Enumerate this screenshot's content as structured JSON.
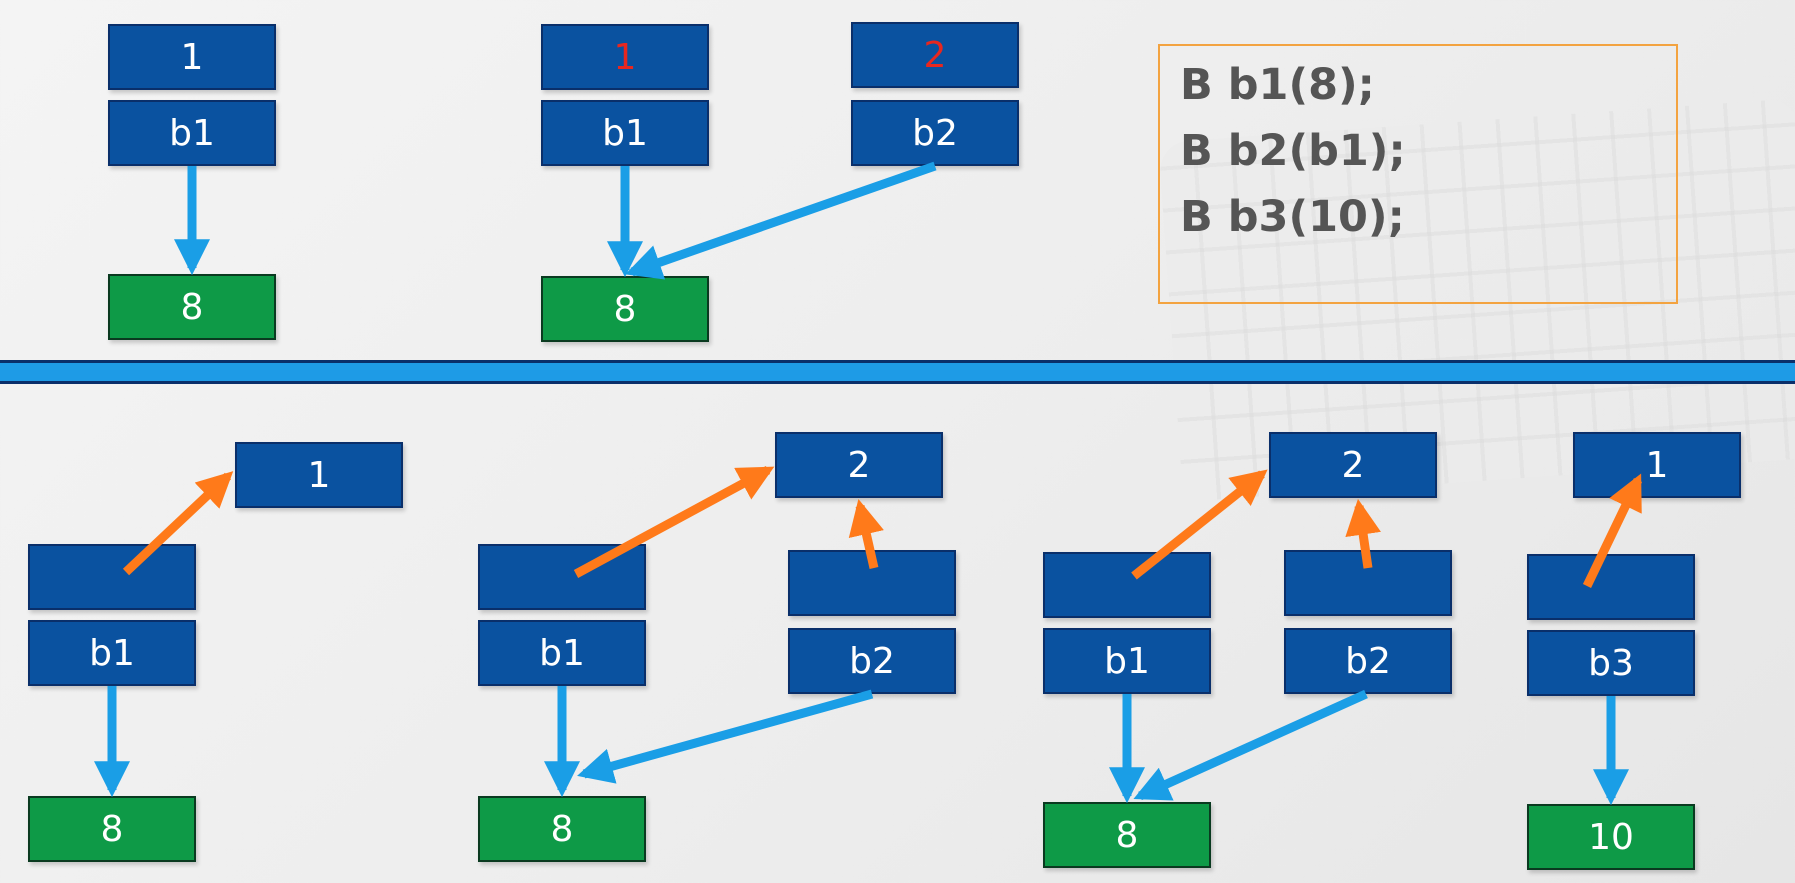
{
  "code": {
    "lines": [
      "B b1(8);",
      "B b2(b1);",
      "B b3(10);"
    ]
  },
  "top": {
    "d1": {
      "count": "1",
      "name": "b1",
      "value": "8"
    },
    "d2": {
      "count1": "1",
      "name1": "b1",
      "count2": "2",
      "name2": "b2",
      "value": "8"
    }
  },
  "bottom": {
    "d1": {
      "count": "1",
      "name": "b1",
      "value": "8"
    },
    "d2": {
      "count": "2",
      "name1": "b1",
      "name2": "b2",
      "value": "8"
    },
    "d3": {
      "count": "2",
      "name1": "b1",
      "name2": "b2",
      "value": "8"
    },
    "d4": {
      "count": "1",
      "name": "b3",
      "value": "10"
    }
  },
  "colors": {
    "box_blue": "#0a52a0",
    "value_green": "#0e9a47",
    "pointer_arrow": "#1a9ee6",
    "count_arrow": "#ff7a1a",
    "count_red": "#e8271f",
    "divider": "#1e9be6"
  }
}
